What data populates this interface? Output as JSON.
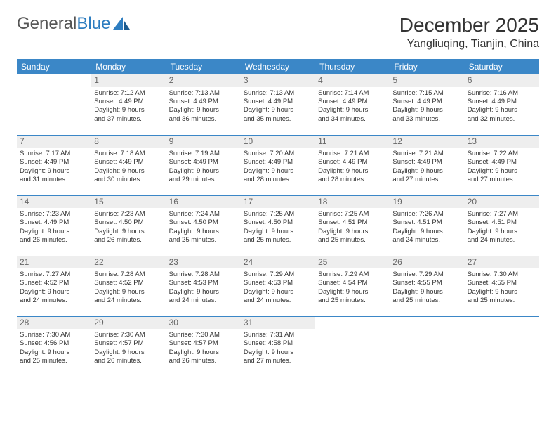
{
  "logo": {
    "text_general": "General",
    "text_blue": "Blue"
  },
  "title": "December 2025",
  "location": "Yangliuqing, Tianjin, China",
  "colors": {
    "header_bg": "#3b87c7",
    "header_text": "#ffffff",
    "daynum_bg": "#eeeeee",
    "daynum_text": "#666666",
    "body_text": "#333333",
    "row_border": "#3b87c7",
    "logo_accent": "#2d7dc0"
  },
  "day_headers": [
    "Sunday",
    "Monday",
    "Tuesday",
    "Wednesday",
    "Thursday",
    "Friday",
    "Saturday"
  ],
  "weeks": [
    [
      null,
      {
        "num": "1",
        "sunrise": "Sunrise: 7:12 AM",
        "sunset": "Sunset: 4:49 PM",
        "daylight1": "Daylight: 9 hours",
        "daylight2": "and 37 minutes."
      },
      {
        "num": "2",
        "sunrise": "Sunrise: 7:13 AM",
        "sunset": "Sunset: 4:49 PM",
        "daylight1": "Daylight: 9 hours",
        "daylight2": "and 36 minutes."
      },
      {
        "num": "3",
        "sunrise": "Sunrise: 7:13 AM",
        "sunset": "Sunset: 4:49 PM",
        "daylight1": "Daylight: 9 hours",
        "daylight2": "and 35 minutes."
      },
      {
        "num": "4",
        "sunrise": "Sunrise: 7:14 AM",
        "sunset": "Sunset: 4:49 PM",
        "daylight1": "Daylight: 9 hours",
        "daylight2": "and 34 minutes."
      },
      {
        "num": "5",
        "sunrise": "Sunrise: 7:15 AM",
        "sunset": "Sunset: 4:49 PM",
        "daylight1": "Daylight: 9 hours",
        "daylight2": "and 33 minutes."
      },
      {
        "num": "6",
        "sunrise": "Sunrise: 7:16 AM",
        "sunset": "Sunset: 4:49 PM",
        "daylight1": "Daylight: 9 hours",
        "daylight2": "and 32 minutes."
      }
    ],
    [
      {
        "num": "7",
        "sunrise": "Sunrise: 7:17 AM",
        "sunset": "Sunset: 4:49 PM",
        "daylight1": "Daylight: 9 hours",
        "daylight2": "and 31 minutes."
      },
      {
        "num": "8",
        "sunrise": "Sunrise: 7:18 AM",
        "sunset": "Sunset: 4:49 PM",
        "daylight1": "Daylight: 9 hours",
        "daylight2": "and 30 minutes."
      },
      {
        "num": "9",
        "sunrise": "Sunrise: 7:19 AM",
        "sunset": "Sunset: 4:49 PM",
        "daylight1": "Daylight: 9 hours",
        "daylight2": "and 29 minutes."
      },
      {
        "num": "10",
        "sunrise": "Sunrise: 7:20 AM",
        "sunset": "Sunset: 4:49 PM",
        "daylight1": "Daylight: 9 hours",
        "daylight2": "and 28 minutes."
      },
      {
        "num": "11",
        "sunrise": "Sunrise: 7:21 AM",
        "sunset": "Sunset: 4:49 PM",
        "daylight1": "Daylight: 9 hours",
        "daylight2": "and 28 minutes."
      },
      {
        "num": "12",
        "sunrise": "Sunrise: 7:21 AM",
        "sunset": "Sunset: 4:49 PM",
        "daylight1": "Daylight: 9 hours",
        "daylight2": "and 27 minutes."
      },
      {
        "num": "13",
        "sunrise": "Sunrise: 7:22 AM",
        "sunset": "Sunset: 4:49 PM",
        "daylight1": "Daylight: 9 hours",
        "daylight2": "and 27 minutes."
      }
    ],
    [
      {
        "num": "14",
        "sunrise": "Sunrise: 7:23 AM",
        "sunset": "Sunset: 4:49 PM",
        "daylight1": "Daylight: 9 hours",
        "daylight2": "and 26 minutes."
      },
      {
        "num": "15",
        "sunrise": "Sunrise: 7:23 AM",
        "sunset": "Sunset: 4:50 PM",
        "daylight1": "Daylight: 9 hours",
        "daylight2": "and 26 minutes."
      },
      {
        "num": "16",
        "sunrise": "Sunrise: 7:24 AM",
        "sunset": "Sunset: 4:50 PM",
        "daylight1": "Daylight: 9 hours",
        "daylight2": "and 25 minutes."
      },
      {
        "num": "17",
        "sunrise": "Sunrise: 7:25 AM",
        "sunset": "Sunset: 4:50 PM",
        "daylight1": "Daylight: 9 hours",
        "daylight2": "and 25 minutes."
      },
      {
        "num": "18",
        "sunrise": "Sunrise: 7:25 AM",
        "sunset": "Sunset: 4:51 PM",
        "daylight1": "Daylight: 9 hours",
        "daylight2": "and 25 minutes."
      },
      {
        "num": "19",
        "sunrise": "Sunrise: 7:26 AM",
        "sunset": "Sunset: 4:51 PM",
        "daylight1": "Daylight: 9 hours",
        "daylight2": "and 24 minutes."
      },
      {
        "num": "20",
        "sunrise": "Sunrise: 7:27 AM",
        "sunset": "Sunset: 4:51 PM",
        "daylight1": "Daylight: 9 hours",
        "daylight2": "and 24 minutes."
      }
    ],
    [
      {
        "num": "21",
        "sunrise": "Sunrise: 7:27 AM",
        "sunset": "Sunset: 4:52 PM",
        "daylight1": "Daylight: 9 hours",
        "daylight2": "and 24 minutes."
      },
      {
        "num": "22",
        "sunrise": "Sunrise: 7:28 AM",
        "sunset": "Sunset: 4:52 PM",
        "daylight1": "Daylight: 9 hours",
        "daylight2": "and 24 minutes."
      },
      {
        "num": "23",
        "sunrise": "Sunrise: 7:28 AM",
        "sunset": "Sunset: 4:53 PM",
        "daylight1": "Daylight: 9 hours",
        "daylight2": "and 24 minutes."
      },
      {
        "num": "24",
        "sunrise": "Sunrise: 7:29 AM",
        "sunset": "Sunset: 4:53 PM",
        "daylight1": "Daylight: 9 hours",
        "daylight2": "and 24 minutes."
      },
      {
        "num": "25",
        "sunrise": "Sunrise: 7:29 AM",
        "sunset": "Sunset: 4:54 PM",
        "daylight1": "Daylight: 9 hours",
        "daylight2": "and 25 minutes."
      },
      {
        "num": "26",
        "sunrise": "Sunrise: 7:29 AM",
        "sunset": "Sunset: 4:55 PM",
        "daylight1": "Daylight: 9 hours",
        "daylight2": "and 25 minutes."
      },
      {
        "num": "27",
        "sunrise": "Sunrise: 7:30 AM",
        "sunset": "Sunset: 4:55 PM",
        "daylight1": "Daylight: 9 hours",
        "daylight2": "and 25 minutes."
      }
    ],
    [
      {
        "num": "28",
        "sunrise": "Sunrise: 7:30 AM",
        "sunset": "Sunset: 4:56 PM",
        "daylight1": "Daylight: 9 hours",
        "daylight2": "and 25 minutes."
      },
      {
        "num": "29",
        "sunrise": "Sunrise: 7:30 AM",
        "sunset": "Sunset: 4:57 PM",
        "daylight1": "Daylight: 9 hours",
        "daylight2": "and 26 minutes."
      },
      {
        "num": "30",
        "sunrise": "Sunrise: 7:30 AM",
        "sunset": "Sunset: 4:57 PM",
        "daylight1": "Daylight: 9 hours",
        "daylight2": "and 26 minutes."
      },
      {
        "num": "31",
        "sunrise": "Sunrise: 7:31 AM",
        "sunset": "Sunset: 4:58 PM",
        "daylight1": "Daylight: 9 hours",
        "daylight2": "and 27 minutes."
      },
      null,
      null,
      null
    ]
  ]
}
